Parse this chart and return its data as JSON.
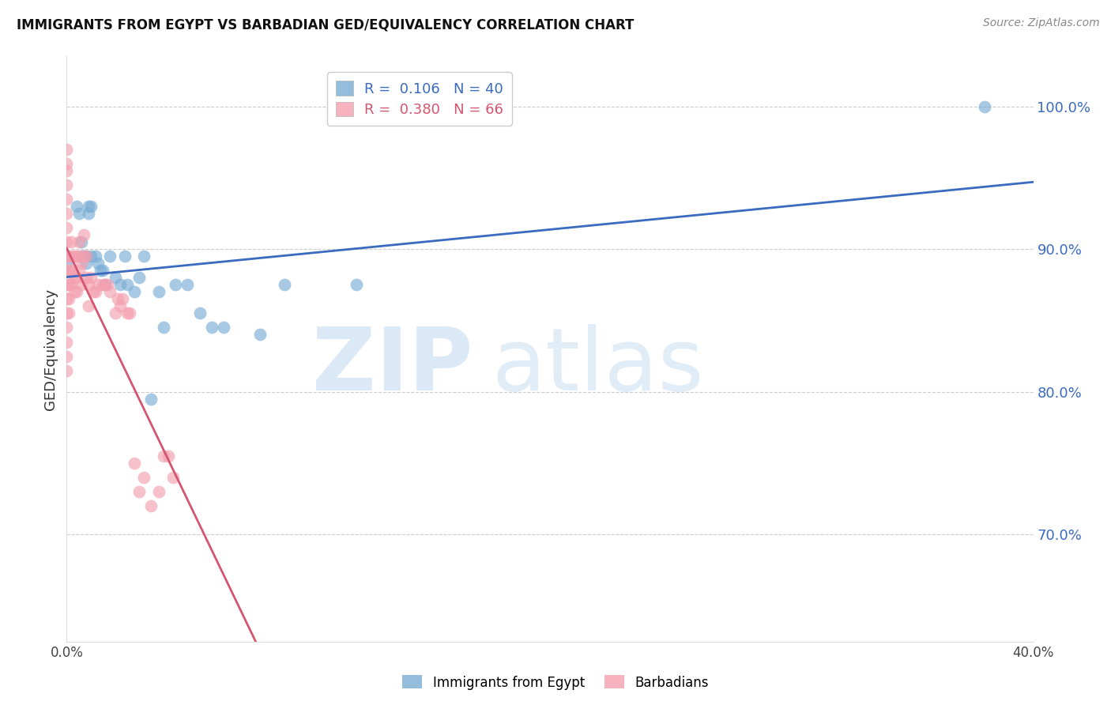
{
  "title": "IMMIGRANTS FROM EGYPT VS BARBADIAN GED/EQUIVALENCY CORRELATION CHART",
  "source": "Source: ZipAtlas.com",
  "ylabel": "GED/Equivalency",
  "yaxis_labels": [
    "100.0%",
    "90.0%",
    "80.0%",
    "70.0%"
  ],
  "yaxis_values": [
    1.0,
    0.9,
    0.8,
    0.7
  ],
  "xlim": [
    0.0,
    0.4
  ],
  "ylim": [
    0.625,
    1.035
  ],
  "blue_color": "#7aadd4",
  "pink_color": "#f4a0b0",
  "trend_blue": "#3a6bbf",
  "trend_pink": "#d45570",
  "egypt_x": [
    0.0,
    0.0,
    0.004,
    0.005,
    0.006,
    0.006,
    0.007,
    0.008,
    0.008,
    0.009,
    0.009,
    0.01,
    0.01,
    0.012,
    0.013,
    0.014,
    0.015,
    0.016,
    0.018,
    0.02,
    0.022,
    0.024,
    0.025,
    0.028,
    0.03,
    0.032,
    0.035,
    0.038,
    0.04,
    0.045,
    0.05,
    0.055,
    0.06,
    0.065,
    0.08,
    0.09,
    0.12,
    0.38
  ],
  "egypt_y": [
    0.895,
    0.89,
    0.93,
    0.925,
    0.905,
    0.895,
    0.895,
    0.895,
    0.89,
    0.93,
    0.925,
    0.93,
    0.895,
    0.895,
    0.89,
    0.885,
    0.885,
    0.875,
    0.895,
    0.88,
    0.875,
    0.895,
    0.875,
    0.87,
    0.88,
    0.895,
    0.795,
    0.87,
    0.845,
    0.875,
    0.875,
    0.855,
    0.845,
    0.845,
    0.84,
    0.875,
    0.875,
    1.0
  ],
  "barbadian_x": [
    0.0,
    0.0,
    0.0,
    0.0,
    0.0,
    0.0,
    0.0,
    0.0,
    0.0,
    0.0,
    0.0,
    0.0,
    0.0,
    0.0,
    0.0,
    0.0,
    0.0,
    0.001,
    0.001,
    0.001,
    0.001,
    0.001,
    0.002,
    0.002,
    0.002,
    0.002,
    0.003,
    0.003,
    0.003,
    0.004,
    0.004,
    0.004,
    0.005,
    0.005,
    0.005,
    0.006,
    0.006,
    0.007,
    0.007,
    0.008,
    0.008,
    0.009,
    0.009,
    0.01,
    0.011,
    0.012,
    0.013,
    0.015,
    0.016,
    0.017,
    0.018,
    0.02,
    0.021,
    0.022,
    0.023,
    0.025,
    0.026,
    0.028,
    0.03,
    0.032,
    0.035,
    0.038,
    0.04,
    0.042,
    0.044
  ],
  "barbadian_y": [
    0.97,
    0.96,
    0.955,
    0.945,
    0.935,
    0.925,
    0.915,
    0.905,
    0.895,
    0.885,
    0.875,
    0.865,
    0.855,
    0.845,
    0.835,
    0.825,
    0.815,
    0.895,
    0.885,
    0.875,
    0.865,
    0.855,
    0.905,
    0.895,
    0.885,
    0.875,
    0.895,
    0.88,
    0.87,
    0.895,
    0.88,
    0.87,
    0.905,
    0.895,
    0.885,
    0.89,
    0.875,
    0.91,
    0.895,
    0.895,
    0.88,
    0.875,
    0.86,
    0.88,
    0.87,
    0.87,
    0.875,
    0.875,
    0.875,
    0.875,
    0.87,
    0.855,
    0.865,
    0.86,
    0.865,
    0.855,
    0.855,
    0.75,
    0.73,
    0.74,
    0.72,
    0.73,
    0.755,
    0.755,
    0.74
  ]
}
